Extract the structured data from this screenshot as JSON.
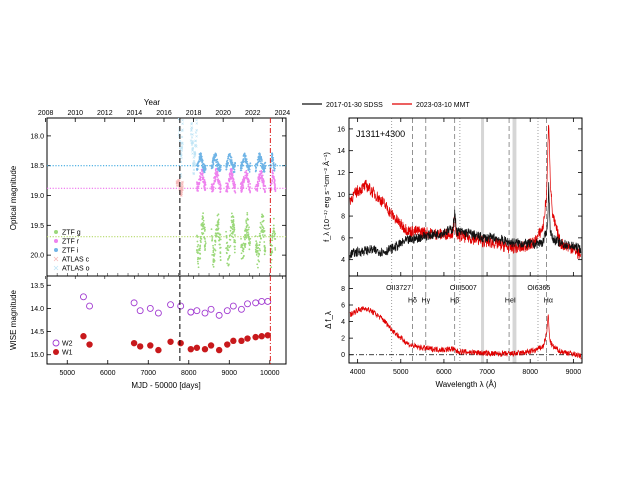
{
  "chart_data": [
    {
      "type": "scatter",
      "panel": "optical",
      "ylabel": "Optical magnitude",
      "top_axis_title": "Year",
      "top_ticks": [
        "2008",
        "2010",
        "2012",
        "2014",
        "2016",
        "2018",
        "2020",
        "2022",
        "2024"
      ],
      "top_tick_mjd": [
        4466,
        5197,
        5927,
        6658,
        7388,
        8119,
        8849,
        9580,
        10310
      ],
      "xlim": [
        4500,
        10400
      ],
      "ylim": [
        20.35,
        17.7
      ],
      "yticks": [
        18.0,
        18.5,
        19.0,
        19.5,
        20.0
      ],
      "ytick_labels": [
        "18.0",
        "18.5",
        "19.0",
        "19.5",
        "20.0"
      ],
      "series": [
        {
          "name": "ZTF g",
          "color": "#9bd87a",
          "marker": "circle",
          "base": 19.75,
          "amp": 0.28,
          "x_range": [
            8200,
            10140
          ],
          "seasons": [
            [
              8200,
              8420
            ],
            [
              8560,
              8790
            ],
            [
              8920,
              9150
            ],
            [
              9280,
              9520
            ],
            [
              9650,
              9890
            ],
            [
              10010,
              10140
            ]
          ]
        },
        {
          "name": "ZTF r",
          "color": "#ee82ee",
          "marker": "circle",
          "base": 18.75,
          "amp": 0.12,
          "x_range": [
            8200,
            10140
          ],
          "seasons": [
            [
              8200,
              8420
            ],
            [
              8560,
              8790
            ],
            [
              8920,
              9150
            ],
            [
              9280,
              9520
            ],
            [
              9650,
              9890
            ],
            [
              10010,
              10140
            ]
          ]
        },
        {
          "name": "ZTF i",
          "color": "#6fb4e6",
          "marker": "circle",
          "base": 18.45,
          "amp": 0.1,
          "x_range": [
            8200,
            10140
          ],
          "seasons": [
            [
              8200,
              8420
            ],
            [
              8560,
              8790
            ],
            [
              8920,
              9150
            ],
            [
              9280,
              9520
            ],
            [
              9650,
              9890
            ],
            [
              10010,
              10140
            ]
          ]
        },
        {
          "name": "ATLAS c",
          "color": "#f5b8b8",
          "marker": "x",
          "base": 18.85,
          "amp": 0.1,
          "x_range": [
            7700,
            7850
          ],
          "seasons": [
            [
              7700,
              7850
            ]
          ]
        },
        {
          "name": "ATLAS o",
          "color": "#bfe4f5",
          "marker": "x",
          "base": 18.2,
          "amp": 0.3,
          "x_range": [
            7750,
            10140
          ],
          "seasons": [
            [
              7750,
              7850
            ],
            [
              8050,
              8200
            ]
          ]
        }
      ],
      "hlines": [
        {
          "y": 18.5,
          "color": "#3fa9e0"
        },
        {
          "y": 18.88,
          "color": "#ee70ee"
        },
        {
          "y": 19.69,
          "color": "#b5d96a"
        }
      ],
      "vlines": [
        {
          "x": 7780,
          "color": "#000",
          "style": "dashed"
        },
        {
          "x": 10014,
          "color": "#d22",
          "style": "dashdot"
        }
      ]
    },
    {
      "type": "scatter",
      "panel": "wise",
      "xlabel": "MJD - 50000 [days]",
      "ylabel": "WISE magnitude",
      "xlim": [
        4500,
        10400
      ],
      "xticks": [
        5000,
        6000,
        7000,
        8000,
        9000,
        10000
      ],
      "xtick_labels": [
        "5000",
        "6000",
        "7000",
        "8000",
        "9000",
        "10000"
      ],
      "top_tick_mjd": [
        4466,
        5197,
        5927,
        6658,
        7388,
        8119,
        8849,
        9580,
        10310
      ],
      "ylim": [
        15.2,
        13.3
      ],
      "yticks": [
        13.5,
        14.0,
        14.5,
        15.0
      ],
      "ytick_labels": [
        "13.5",
        "14.0",
        "14.5",
        "15.0"
      ],
      "series": [
        {
          "name": "W2",
          "color": "#a13ad1",
          "marker": "open-circle",
          "x": [
            5400,
            5550,
            6650,
            6800,
            7050,
            7250,
            7550,
            7800,
            8050,
            8200,
            8400,
            8550,
            8750,
            8950,
            9100,
            9300,
            9450,
            9650,
            9800,
            9950
          ],
          "y": [
            13.75,
            13.95,
            13.88,
            14.05,
            14.0,
            14.1,
            13.92,
            13.95,
            14.08,
            14.05,
            14.1,
            14.02,
            14.15,
            14.05,
            13.95,
            14.02,
            13.9,
            13.88,
            13.85,
            13.85
          ]
        },
        {
          "name": "W1",
          "color": "#c8191c",
          "marker": "filled-circle",
          "x": [
            5400,
            5550,
            6650,
            6800,
            7050,
            7250,
            7550,
            7800,
            8050,
            8200,
            8400,
            8550,
            8750,
            8950,
            9100,
            9300,
            9450,
            9650,
            9800,
            9950
          ],
          "y": [
            14.6,
            14.78,
            14.75,
            14.82,
            14.8,
            14.9,
            14.72,
            14.75,
            14.88,
            14.85,
            14.88,
            14.8,
            14.9,
            14.78,
            14.7,
            14.7,
            14.65,
            14.62,
            14.6,
            14.58
          ]
        }
      ],
      "vlines": [
        {
          "x": 7780,
          "color": "#000",
          "style": "dashed"
        },
        {
          "x": 10014,
          "color": "#d22",
          "style": "dashdot"
        }
      ]
    },
    {
      "type": "line",
      "panel": "spectrum",
      "object": "J1311+4300",
      "ylabel": "f_λ (10⁻¹⁷ erg s⁻¹cm⁻² Å⁻¹)",
      "xlim": [
        3800,
        9200
      ],
      "ylim": [
        2.5,
        17
      ],
      "yticks": [
        4,
        6,
        8,
        10,
        12,
        14,
        16
      ],
      "ytick_labels": [
        "4",
        "6",
        "8",
        "10",
        "12",
        "14",
        "16"
      ],
      "series": [
        {
          "name": "2017-01-30 SDSS",
          "color": "#111111",
          "x": [
            3820,
            4000,
            4300,
            4600,
            4900,
            5100,
            5300,
            5600,
            5900,
            6200,
            6250,
            6300,
            6600,
            6900,
            7200,
            7500,
            7800,
            8100,
            8300,
            8400,
            8430,
            8460,
            8500,
            8700,
            9000,
            9180
          ],
          "y": [
            4.5,
            4.7,
            4.9,
            4.7,
            5.2,
            5.7,
            5.9,
            6.2,
            6.4,
            6.8,
            8.2,
            6.6,
            6.4,
            6.0,
            6.0,
            5.6,
            5.5,
            5.4,
            5.6,
            7.0,
            11.0,
            7.0,
            6.0,
            5.5,
            5.2,
            5.0
          ]
        },
        {
          "name": "2023-03-10 MMT",
          "color": "#e00000",
          "x": [
            3820,
            4000,
            4200,
            4400,
            4600,
            4800,
            5000,
            5200,
            5400,
            5700,
            6000,
            6200,
            6250,
            6300,
            6600,
            6900,
            7200,
            7500,
            7800,
            8100,
            8300,
            8380,
            8430,
            8470,
            8520,
            8700,
            9000,
            9180
          ],
          "y": [
            9.5,
            10.3,
            10.8,
            10.0,
            9.2,
            8.1,
            7.2,
            6.6,
            6.6,
            6.4,
            6.3,
            6.5,
            7.8,
            6.2,
            6.0,
            5.7,
            5.5,
            5.1,
            5.1,
            5.6,
            7.0,
            10.0,
            17.0,
            11.0,
            8.0,
            5.5,
            5.0,
            4.3
          ]
        }
      ],
      "lines_dotted": [
        4790,
        6370,
        8180
      ],
      "lines_dashed": [
        5270,
        5580,
        6250,
        7510,
        8380
      ],
      "gray_bands": [
        [
          6860,
          6930
        ],
        [
          7590,
          7680
        ]
      ],
      "legend": [
        "2017-01-30 SDSS",
        "2023-03-10 MMT"
      ]
    },
    {
      "type": "line",
      "panel": "difference",
      "xlabel": "Wavelength λ (Å)",
      "ylabel": "Δ f_λ",
      "xlim": [
        3800,
        9200
      ],
      "xticks": [
        4000,
        5000,
        6000,
        7000,
        8000,
        9000
      ],
      "xtick_labels": [
        "4000",
        "5000",
        "6000",
        "7000",
        "8000",
        "9000"
      ],
      "ylim": [
        -1,
        9.5
      ],
      "yticks": [
        0,
        2,
        4,
        6,
        8
      ],
      "ytick_labels": [
        "0",
        "2",
        "4",
        "6",
        "8"
      ],
      "series": [
        {
          "name": "difference",
          "color": "#e00000",
          "x": [
            3820,
            4000,
            4200,
            4400,
            4600,
            4800,
            5000,
            5200,
            5400,
            5700,
            6000,
            6200,
            6300,
            6600,
            6900,
            7200,
            7500,
            7800,
            8100,
            8300,
            8380,
            8420,
            8440,
            8470,
            8520,
            8700,
            9000,
            9180
          ],
          "y": [
            4.8,
            5.4,
            5.6,
            5.0,
            4.2,
            3.0,
            2.0,
            1.2,
            0.9,
            0.7,
            0.6,
            0.7,
            0.4,
            0.3,
            0.2,
            0.1,
            0.1,
            0.2,
            0.5,
            1.0,
            2.5,
            5.0,
            2.5,
            1.5,
            1.0,
            0.4,
            0.1,
            -0.2
          ]
        }
      ],
      "zero_line": 0,
      "line_labels": [
        {
          "text": "OII3727",
          "x": 4950,
          "y": 7.8
        },
        {
          "text": "Hδ",
          "x": 5270,
          "y": 6.3
        },
        {
          "text": "Hγ",
          "x": 5580,
          "y": 6.3
        },
        {
          "text": "Hβ",
          "x": 6250,
          "y": 6.3
        },
        {
          "text": "OIII5007",
          "x": 6450,
          "y": 7.8
        },
        {
          "text": "HeI",
          "x": 7540,
          "y": 6.3
        },
        {
          "text": "OI6365",
          "x": 8200,
          "y": 7.8
        },
        {
          "text": "Hα",
          "x": 8420,
          "y": 6.3
        }
      ]
    }
  ]
}
